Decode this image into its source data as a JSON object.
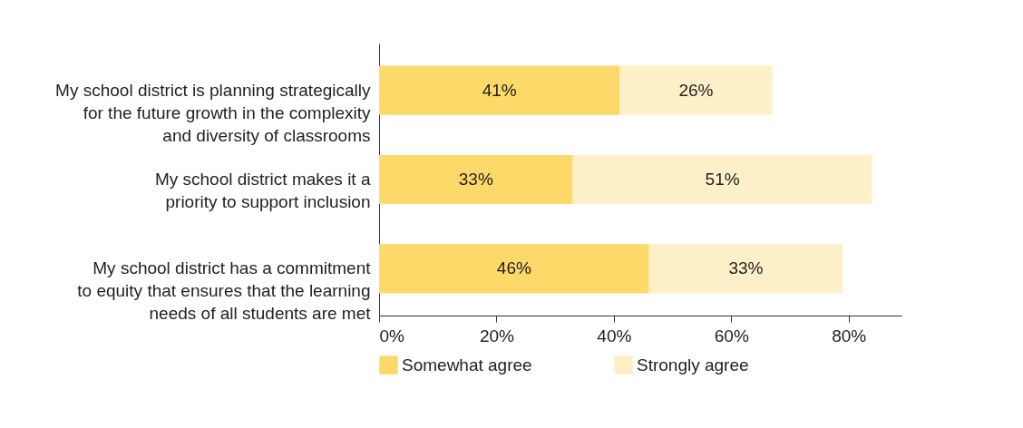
{
  "chart_data": {
    "type": "bar",
    "orientation": "horizontal",
    "stacked": true,
    "categories": [
      "My school district is planning strategically\nfor the future growth in the complexity\nand diversity of classrooms",
      "My school district makes it a\npriority to support inclusion",
      "My school district has a commitment\nto equity that ensures that the learning\nneeds of all students are met"
    ],
    "series": [
      {
        "name": "Somewhat agree",
        "color": "#fdd96a",
        "values": [
          41,
          33,
          46
        ],
        "value_labels": [
          "41%",
          "33%",
          "46%"
        ]
      },
      {
        "name": "Strongly agree",
        "color": "#fdf0c8",
        "values": [
          26,
          51,
          33
        ],
        "value_labels": [
          "26%",
          "51%",
          "33%"
        ]
      }
    ],
    "xlim": [
      0,
      89
    ],
    "xticks": [
      {
        "value": 0,
        "label": "0%"
      },
      {
        "value": 20,
        "label": "20%"
      },
      {
        "value": 40,
        "label": "40%"
      },
      {
        "value": 60,
        "label": "60%"
      },
      {
        "value": 80,
        "label": "80%"
      }
    ],
    "grid": false,
    "legend": "bottom"
  }
}
